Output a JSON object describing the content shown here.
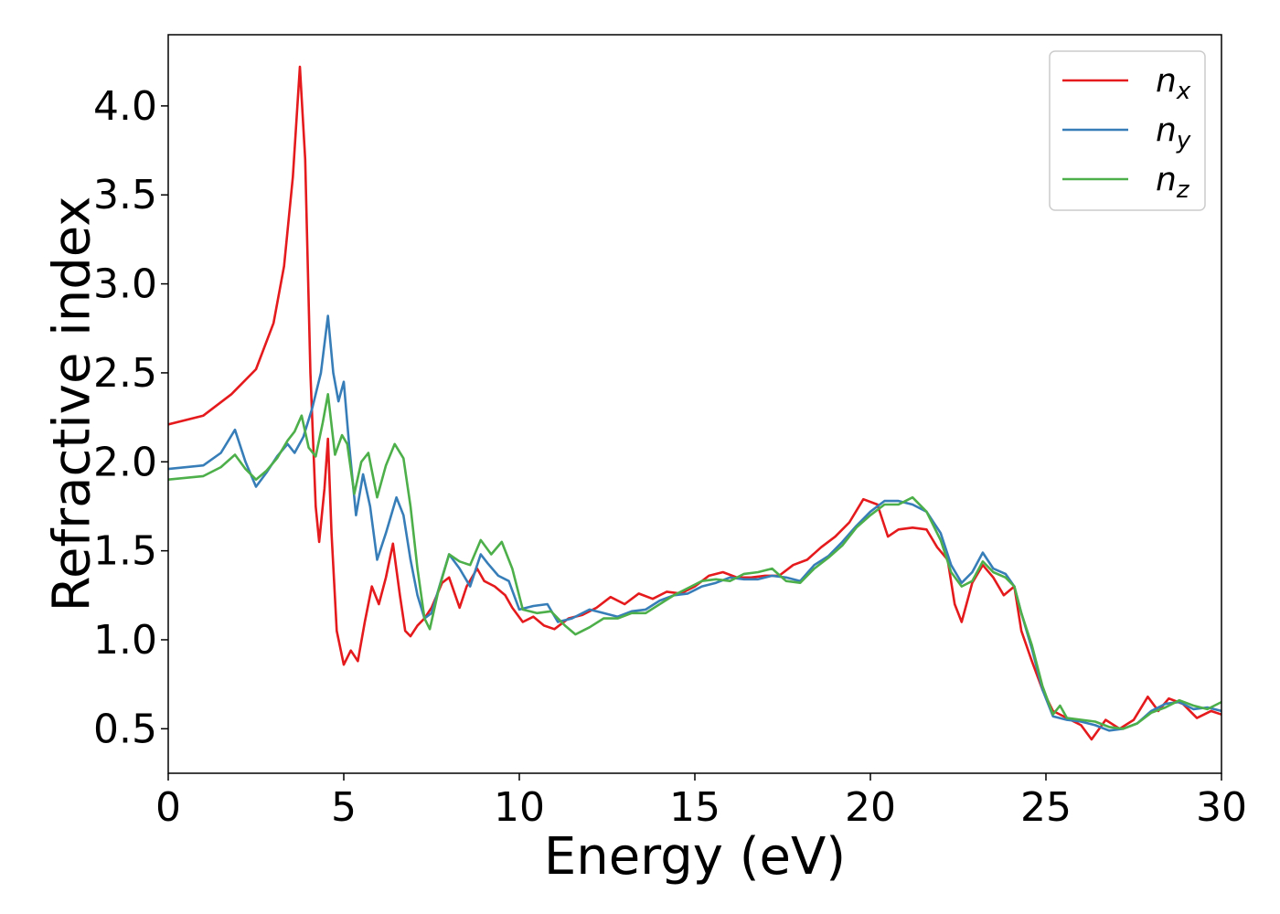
{
  "chart_data": {
    "type": "line",
    "xlabel": "Energy (eV)",
    "ylabel": "Refractive index",
    "xlim": [
      0,
      30
    ],
    "ylim": [
      0.25,
      4.4
    ],
    "xticks": [
      0,
      5,
      10,
      15,
      20,
      25,
      30
    ],
    "yticks": [
      0.5,
      1.0,
      1.5,
      2.0,
      2.5,
      3.0,
      3.5,
      4.0
    ],
    "xtick_labels": [
      "0",
      "5",
      "10",
      "15",
      "20",
      "25",
      "30"
    ],
    "ytick_labels": [
      "0.5",
      "1.0",
      "1.5",
      "2.0",
      "2.5",
      "3.0",
      "3.5",
      "4.0"
    ],
    "grid": false,
    "legend_position": "top-right",
    "series": [
      {
        "name": "n",
        "subscript": "x",
        "color": "#e41a1c",
        "points": [
          [
            0,
            2.21
          ],
          [
            1,
            2.26
          ],
          [
            1.8,
            2.38
          ],
          [
            2.5,
            2.52
          ],
          [
            3.0,
            2.78
          ],
          [
            3.3,
            3.1
          ],
          [
            3.55,
            3.6
          ],
          [
            3.75,
            4.22
          ],
          [
            3.9,
            3.7
          ],
          [
            4.05,
            2.5
          ],
          [
            4.2,
            1.75
          ],
          [
            4.3,
            1.55
          ],
          [
            4.45,
            1.85
          ],
          [
            4.55,
            2.13
          ],
          [
            4.65,
            1.6
          ],
          [
            4.8,
            1.05
          ],
          [
            5.0,
            0.86
          ],
          [
            5.2,
            0.94
          ],
          [
            5.4,
            0.88
          ],
          [
            5.6,
            1.1
          ],
          [
            5.8,
            1.3
          ],
          [
            6.0,
            1.2
          ],
          [
            6.2,
            1.35
          ],
          [
            6.4,
            1.54
          ],
          [
            6.6,
            1.25
          ],
          [
            6.75,
            1.05
          ],
          [
            6.9,
            1.02
          ],
          [
            7.1,
            1.08
          ],
          [
            7.3,
            1.12
          ],
          [
            7.5,
            1.18
          ],
          [
            7.8,
            1.32
          ],
          [
            8.0,
            1.35
          ],
          [
            8.3,
            1.18
          ],
          [
            8.5,
            1.3
          ],
          [
            8.8,
            1.4
          ],
          [
            9.0,
            1.33
          ],
          [
            9.3,
            1.3
          ],
          [
            9.6,
            1.25
          ],
          [
            9.8,
            1.18
          ],
          [
            10.1,
            1.1
          ],
          [
            10.4,
            1.13
          ],
          [
            10.7,
            1.08
          ],
          [
            11.0,
            1.06
          ],
          [
            11.4,
            1.12
          ],
          [
            11.8,
            1.14
          ],
          [
            12.2,
            1.18
          ],
          [
            12.6,
            1.24
          ],
          [
            13.0,
            1.2
          ],
          [
            13.4,
            1.26
          ],
          [
            13.8,
            1.23
          ],
          [
            14.2,
            1.27
          ],
          [
            14.6,
            1.26
          ],
          [
            15.0,
            1.3
          ],
          [
            15.4,
            1.36
          ],
          [
            15.8,
            1.38
          ],
          [
            16.2,
            1.35
          ],
          [
            16.6,
            1.35
          ],
          [
            17.0,
            1.36
          ],
          [
            17.4,
            1.36
          ],
          [
            17.8,
            1.42
          ],
          [
            18.2,
            1.45
          ],
          [
            18.6,
            1.52
          ],
          [
            19.0,
            1.58
          ],
          [
            19.4,
            1.66
          ],
          [
            19.8,
            1.79
          ],
          [
            20.2,
            1.76
          ],
          [
            20.5,
            1.58
          ],
          [
            20.8,
            1.62
          ],
          [
            21.2,
            1.63
          ],
          [
            21.6,
            1.62
          ],
          [
            21.9,
            1.52
          ],
          [
            22.2,
            1.45
          ],
          [
            22.4,
            1.2
          ],
          [
            22.6,
            1.1
          ],
          [
            22.9,
            1.32
          ],
          [
            23.2,
            1.42
          ],
          [
            23.5,
            1.35
          ],
          [
            23.8,
            1.25
          ],
          [
            24.1,
            1.3
          ],
          [
            24.3,
            1.05
          ],
          [
            24.6,
            0.88
          ],
          [
            24.9,
            0.72
          ],
          [
            25.2,
            0.6
          ],
          [
            25.6,
            0.56
          ],
          [
            26.0,
            0.52
          ],
          [
            26.3,
            0.44
          ],
          [
            26.7,
            0.55
          ],
          [
            27.1,
            0.5
          ],
          [
            27.5,
            0.55
          ],
          [
            27.9,
            0.68
          ],
          [
            28.2,
            0.6
          ],
          [
            28.5,
            0.67
          ],
          [
            28.9,
            0.64
          ],
          [
            29.3,
            0.56
          ],
          [
            29.7,
            0.6
          ],
          [
            30.0,
            0.58
          ]
        ]
      },
      {
        "name": "n",
        "subscript": "y",
        "color": "#377eb8",
        "points": [
          [
            0,
            1.96
          ],
          [
            1.0,
            1.98
          ],
          [
            1.5,
            2.05
          ],
          [
            1.9,
            2.18
          ],
          [
            2.2,
            2.0
          ],
          [
            2.5,
            1.86
          ],
          [
            2.8,
            1.94
          ],
          [
            3.1,
            2.03
          ],
          [
            3.4,
            2.1
          ],
          [
            3.6,
            2.05
          ],
          [
            3.85,
            2.14
          ],
          [
            4.1,
            2.3
          ],
          [
            4.35,
            2.5
          ],
          [
            4.55,
            2.82
          ],
          [
            4.7,
            2.5
          ],
          [
            4.85,
            2.34
          ],
          [
            5.0,
            2.45
          ],
          [
            5.15,
            2.1
          ],
          [
            5.35,
            1.7
          ],
          [
            5.55,
            1.93
          ],
          [
            5.75,
            1.75
          ],
          [
            5.95,
            1.45
          ],
          [
            6.2,
            1.6
          ],
          [
            6.5,
            1.8
          ],
          [
            6.7,
            1.7
          ],
          [
            6.9,
            1.45
          ],
          [
            7.1,
            1.25
          ],
          [
            7.3,
            1.12
          ],
          [
            7.5,
            1.15
          ],
          [
            7.8,
            1.35
          ],
          [
            8.0,
            1.48
          ],
          [
            8.3,
            1.4
          ],
          [
            8.6,
            1.3
          ],
          [
            8.9,
            1.48
          ],
          [
            9.1,
            1.43
          ],
          [
            9.4,
            1.36
          ],
          [
            9.7,
            1.33
          ],
          [
            10.0,
            1.17
          ],
          [
            10.4,
            1.19
          ],
          [
            10.8,
            1.2
          ],
          [
            11.1,
            1.1
          ],
          [
            11.5,
            1.12
          ],
          [
            12.0,
            1.17
          ],
          [
            12.4,
            1.15
          ],
          [
            12.8,
            1.13
          ],
          [
            13.2,
            1.16
          ],
          [
            13.6,
            1.17
          ],
          [
            14.0,
            1.22
          ],
          [
            14.4,
            1.25
          ],
          [
            14.8,
            1.26
          ],
          [
            15.2,
            1.3
          ],
          [
            15.6,
            1.32
          ],
          [
            16.0,
            1.35
          ],
          [
            16.4,
            1.34
          ],
          [
            16.8,
            1.34
          ],
          [
            17.2,
            1.36
          ],
          [
            17.6,
            1.35
          ],
          [
            18.0,
            1.33
          ],
          [
            18.4,
            1.42
          ],
          [
            18.8,
            1.47
          ],
          [
            19.2,
            1.55
          ],
          [
            19.6,
            1.64
          ],
          [
            20.0,
            1.72
          ],
          [
            20.4,
            1.78
          ],
          [
            20.8,
            1.78
          ],
          [
            21.2,
            1.76
          ],
          [
            21.6,
            1.72
          ],
          [
            22.0,
            1.6
          ],
          [
            22.3,
            1.42
          ],
          [
            22.6,
            1.32
          ],
          [
            22.9,
            1.38
          ],
          [
            23.2,
            1.49
          ],
          [
            23.5,
            1.4
          ],
          [
            23.85,
            1.37
          ],
          [
            24.1,
            1.3
          ],
          [
            24.3,
            1.15
          ],
          [
            24.6,
            0.95
          ],
          [
            24.9,
            0.72
          ],
          [
            25.2,
            0.57
          ],
          [
            25.6,
            0.55
          ],
          [
            26.0,
            0.54
          ],
          [
            26.4,
            0.52
          ],
          [
            26.8,
            0.49
          ],
          [
            27.2,
            0.5
          ],
          [
            27.6,
            0.53
          ],
          [
            28.0,
            0.6
          ],
          [
            28.4,
            0.64
          ],
          [
            28.8,
            0.65
          ],
          [
            29.2,
            0.61
          ],
          [
            29.6,
            0.62
          ],
          [
            30.0,
            0.6
          ]
        ]
      },
      {
        "name": "n",
        "subscript": "z",
        "color": "#4daf4a",
        "points": [
          [
            0,
            1.9
          ],
          [
            1.0,
            1.92
          ],
          [
            1.5,
            1.97
          ],
          [
            1.9,
            2.04
          ],
          [
            2.2,
            1.96
          ],
          [
            2.5,
            1.9
          ],
          [
            2.8,
            1.95
          ],
          [
            3.1,
            2.02
          ],
          [
            3.4,
            2.12
          ],
          [
            3.6,
            2.17
          ],
          [
            3.8,
            2.26
          ],
          [
            4.0,
            2.08
          ],
          [
            4.2,
            2.03
          ],
          [
            4.4,
            2.22
          ],
          [
            4.55,
            2.38
          ],
          [
            4.75,
            2.04
          ],
          [
            4.95,
            2.15
          ],
          [
            5.1,
            2.1
          ],
          [
            5.3,
            1.82
          ],
          [
            5.5,
            2.0
          ],
          [
            5.7,
            2.05
          ],
          [
            5.95,
            1.8
          ],
          [
            6.2,
            1.98
          ],
          [
            6.45,
            2.1
          ],
          [
            6.7,
            2.02
          ],
          [
            6.9,
            1.75
          ],
          [
            7.1,
            1.4
          ],
          [
            7.3,
            1.12
          ],
          [
            7.45,
            1.06
          ],
          [
            7.7,
            1.28
          ],
          [
            8.0,
            1.48
          ],
          [
            8.3,
            1.44
          ],
          [
            8.6,
            1.42
          ],
          [
            8.9,
            1.56
          ],
          [
            9.2,
            1.48
          ],
          [
            9.5,
            1.55
          ],
          [
            9.8,
            1.4
          ],
          [
            10.1,
            1.17
          ],
          [
            10.5,
            1.15
          ],
          [
            10.9,
            1.16
          ],
          [
            11.3,
            1.08
          ],
          [
            11.6,
            1.03
          ],
          [
            12.0,
            1.07
          ],
          [
            12.4,
            1.12
          ],
          [
            12.8,
            1.12
          ],
          [
            13.2,
            1.15
          ],
          [
            13.6,
            1.15
          ],
          [
            14.0,
            1.2
          ],
          [
            14.4,
            1.25
          ],
          [
            14.8,
            1.29
          ],
          [
            15.2,
            1.33
          ],
          [
            15.6,
            1.34
          ],
          [
            16.0,
            1.33
          ],
          [
            16.4,
            1.37
          ],
          [
            16.8,
            1.38
          ],
          [
            17.2,
            1.4
          ],
          [
            17.6,
            1.33
          ],
          [
            18.0,
            1.32
          ],
          [
            18.4,
            1.4
          ],
          [
            18.8,
            1.46
          ],
          [
            19.2,
            1.53
          ],
          [
            19.6,
            1.63
          ],
          [
            20.0,
            1.7
          ],
          [
            20.4,
            1.76
          ],
          [
            20.8,
            1.76
          ],
          [
            21.2,
            1.8
          ],
          [
            21.6,
            1.72
          ],
          [
            22.0,
            1.56
          ],
          [
            22.3,
            1.38
          ],
          [
            22.6,
            1.3
          ],
          [
            22.9,
            1.33
          ],
          [
            23.2,
            1.44
          ],
          [
            23.5,
            1.38
          ],
          [
            23.85,
            1.35
          ],
          [
            24.1,
            1.3
          ],
          [
            24.3,
            1.15
          ],
          [
            24.6,
            0.97
          ],
          [
            24.9,
            0.74
          ],
          [
            25.2,
            0.58
          ],
          [
            25.4,
            0.63
          ],
          [
            25.6,
            0.56
          ],
          [
            26.0,
            0.55
          ],
          [
            26.4,
            0.54
          ],
          [
            26.8,
            0.51
          ],
          [
            27.2,
            0.5
          ],
          [
            27.6,
            0.53
          ],
          [
            28.0,
            0.59
          ],
          [
            28.4,
            0.62
          ],
          [
            28.8,
            0.66
          ],
          [
            29.2,
            0.63
          ],
          [
            29.6,
            0.61
          ],
          [
            30.0,
            0.65
          ]
        ]
      }
    ]
  }
}
